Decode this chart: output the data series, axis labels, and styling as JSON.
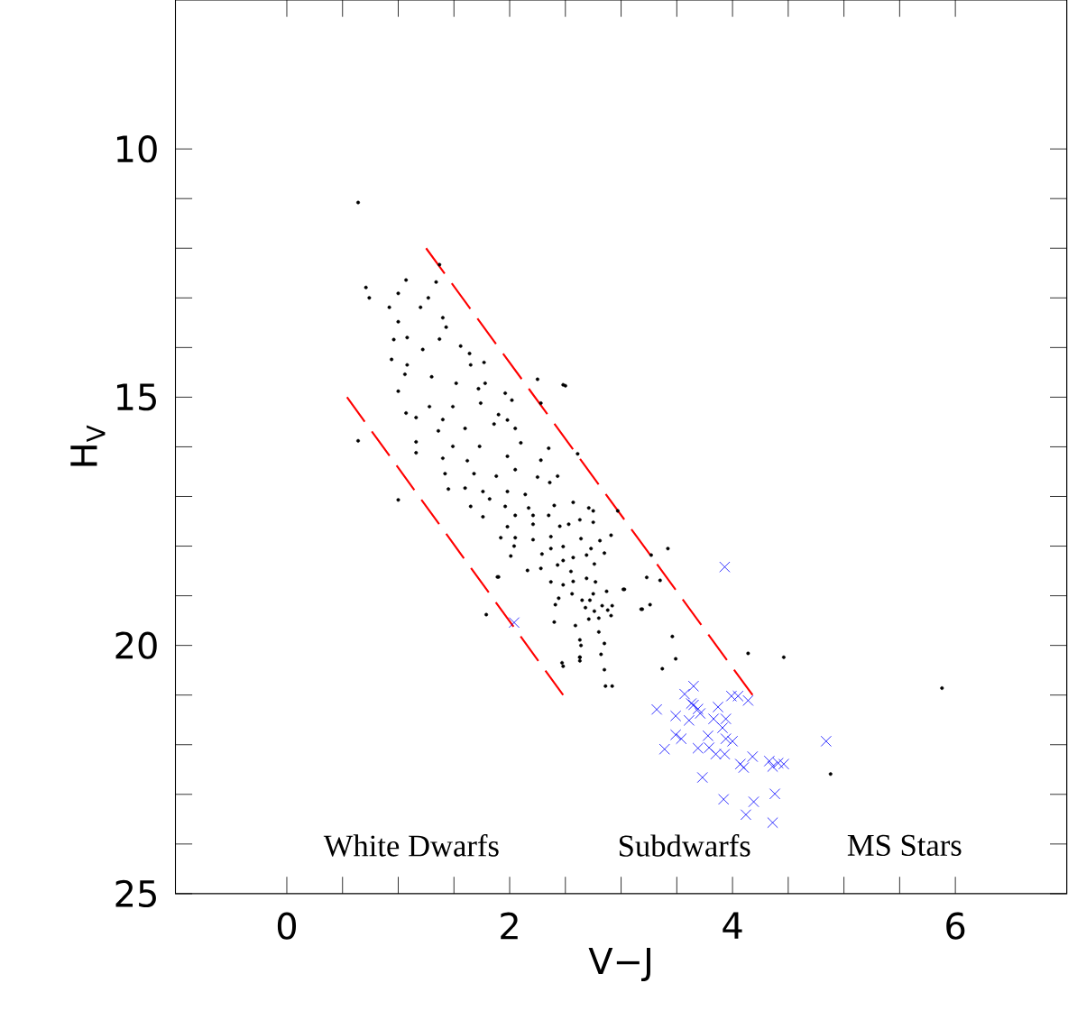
{
  "chart_data": {
    "type": "scatter",
    "xlabel": "V−J",
    "ylabel": "H$_{V}$",
    "xlim": [
      -1,
      7
    ],
    "ylim": [
      25,
      7
    ],
    "xticks": [
      0,
      2,
      4,
      6
    ],
    "yticks": [
      10,
      15,
      20,
      25
    ],
    "series": [
      {
        "color": "#000000",
        "marker": "circle",
        "x": [
          0.64,
          0.71,
          0.74,
          0.64,
          1.0,
          1.37,
          2.25,
          2.48,
          2.61,
          2.75,
          2.97,
          1.79,
          1.9,
          3.42,
          3.27,
          3.23,
          3.35,
          3.02,
          3.18,
          3.26,
          3.46,
          3.49,
          3.37,
          4.14,
          4.46,
          4.88,
          5.88,
          2.86,
          2.92,
          2.48,
          2.63,
          2.85,
          1.07,
          1.34,
          1.0,
          1.27,
          0.92,
          1.2,
          1.0,
          1.4,
          1.43,
          1.08,
          0.96,
          1.37,
          1.56,
          0.94,
          1.22,
          1.64,
          1.77,
          1.65,
          1.08,
          1.06,
          1.0,
          1.3,
          1.52,
          1.78,
          1.72,
          1.96,
          1.07,
          1.28,
          1.49,
          1.74,
          2.02,
          2.28,
          1.16,
          1.4,
          1.9,
          1.98,
          1.36,
          1.6,
          1.86,
          2.05,
          1.16,
          1.49,
          1.73,
          2.1,
          2.35,
          1.16,
          1.4,
          1.62,
          1.98,
          2.28,
          1.42,
          1.68,
          1.88,
          2.05,
          2.25,
          2.43,
          1.45,
          1.6,
          1.76,
          1.98,
          2.36,
          1.82,
          2.14,
          2.57,
          1.65,
          1.96,
          2.17,
          2.4,
          2.71,
          1.76,
          2.05,
          2.21,
          2.35,
          2.63,
          2.75,
          1.98,
          2.21,
          2.45,
          2.53,
          1.92,
          2.05,
          2.21,
          2.37,
          2.64,
          2.81,
          2.91,
          2.04,
          2.37,
          2.48,
          2.73,
          2.01,
          2.29,
          2.57,
          2.69,
          2.85,
          2.48,
          2.76,
          2.28,
          2.43,
          2.16,
          2.55,
          1.89,
          2.37,
          2.57,
          2.69,
          2.77,
          2.48,
          3.03,
          2.56,
          2.75,
          2.87,
          2.44,
          2.65,
          2.72,
          2.41,
          2.83,
          2.92,
          2.68,
          3.19,
          2.88,
          2.76,
          2.4,
          2.59,
          2.71,
          2.8,
          2.91,
          2.8,
          2.63,
          2.85,
          2.64,
          2.82,
          2.63,
          2.47,
          2.63,
          2.5
        ],
        "values": [
          11.08,
          12.79,
          13.0,
          15.88,
          17.07,
          12.33,
          14.64,
          14.75,
          16.14,
          17.29,
          17.29,
          19.38,
          18.62,
          18.05,
          18.18,
          18.63,
          18.69,
          18.87,
          19.27,
          19.18,
          19.82,
          20.27,
          20.47,
          20.16,
          20.24,
          22.59,
          20.86,
          20.82,
          20.82,
          20.42,
          20.24,
          20.49,
          12.64,
          12.68,
          12.91,
          13.0,
          13.19,
          13.19,
          13.48,
          13.4,
          13.59,
          13.8,
          13.84,
          13.83,
          13.97,
          14.24,
          14.04,
          14.12,
          14.3,
          14.35,
          14.35,
          14.54,
          14.88,
          14.59,
          14.72,
          14.72,
          14.83,
          14.92,
          15.32,
          15.19,
          15.19,
          15.12,
          15.06,
          15.12,
          15.41,
          15.45,
          15.35,
          15.46,
          15.68,
          15.63,
          15.54,
          15.63,
          15.9,
          15.99,
          15.99,
          15.92,
          16.03,
          16.12,
          16.23,
          16.28,
          16.19,
          16.27,
          16.54,
          16.54,
          16.59,
          16.46,
          16.61,
          16.59,
          16.85,
          16.83,
          16.9,
          16.9,
          16.72,
          17.05,
          16.96,
          17.12,
          17.2,
          17.2,
          17.23,
          17.18,
          17.23,
          17.41,
          17.38,
          17.38,
          17.38,
          17.47,
          17.52,
          17.61,
          17.56,
          17.6,
          17.56,
          17.83,
          17.83,
          17.87,
          17.81,
          17.85,
          17.89,
          17.78,
          18.0,
          18.05,
          18.01,
          18.05,
          18.2,
          18.16,
          18.23,
          18.18,
          18.14,
          18.29,
          18.36,
          18.45,
          18.38,
          18.49,
          18.51,
          18.62,
          18.72,
          18.71,
          18.65,
          18.72,
          18.78,
          18.87,
          18.96,
          18.96,
          18.91,
          19.05,
          19.09,
          19.09,
          19.18,
          19.2,
          19.2,
          19.24,
          19.27,
          19.29,
          19.31,
          19.53,
          19.6,
          19.47,
          19.45,
          19.4,
          19.73,
          19.89,
          19.96,
          20.0,
          20.18,
          20.24,
          20.35,
          20.31,
          14.77
        ]
      },
      {
        "color": "#0000ff",
        "marker": "cross",
        "x": [
          3.93,
          2.04,
          3.65,
          3.57,
          3.65,
          3.63,
          3.69,
          3.32,
          3.49,
          3.61,
          3.71,
          3.87,
          3.83,
          3.94,
          3.91,
          3.99,
          4.05,
          4.14,
          3.49,
          3.54,
          3.39,
          3.78,
          3.94,
          4.0,
          3.69,
          3.79,
          3.85,
          3.93,
          4.07,
          4.1,
          4.18,
          4.33,
          4.36,
          4.41,
          4.46,
          4.84,
          3.73,
          3.92,
          4.19,
          4.38,
          4.12,
          4.36
        ],
        "values": [
          18.42,
          19.54,
          20.82,
          20.98,
          21.2,
          21.17,
          21.28,
          21.29,
          21.42,
          21.51,
          21.37,
          21.24,
          21.48,
          21.48,
          21.66,
          21.02,
          21.02,
          21.11,
          21.8,
          21.88,
          22.09,
          21.82,
          21.88,
          21.93,
          22.07,
          22.06,
          22.19,
          22.19,
          22.39,
          22.46,
          22.24,
          22.33,
          22.44,
          22.37,
          22.39,
          21.93,
          22.66,
          23.1,
          23.15,
          22.99,
          23.41,
          23.57
        ]
      },
      {
        "type": "line",
        "color": "#ff0000",
        "line_style": "dashed",
        "marker": "none",
        "x": [
          1.25,
          4.18
        ],
        "values": [
          12.0,
          21.0
        ]
      },
      {
        "type": "line",
        "color": "#ff0000",
        "line_style": "dashed",
        "marker": "none",
        "x": [
          0.54,
          2.48
        ],
        "values": [
          15.0,
          21.0
        ]
      }
    ],
    "annotations": [
      "White Dwarfs",
      "Subdwarfs",
      "MS Stars"
    ]
  }
}
